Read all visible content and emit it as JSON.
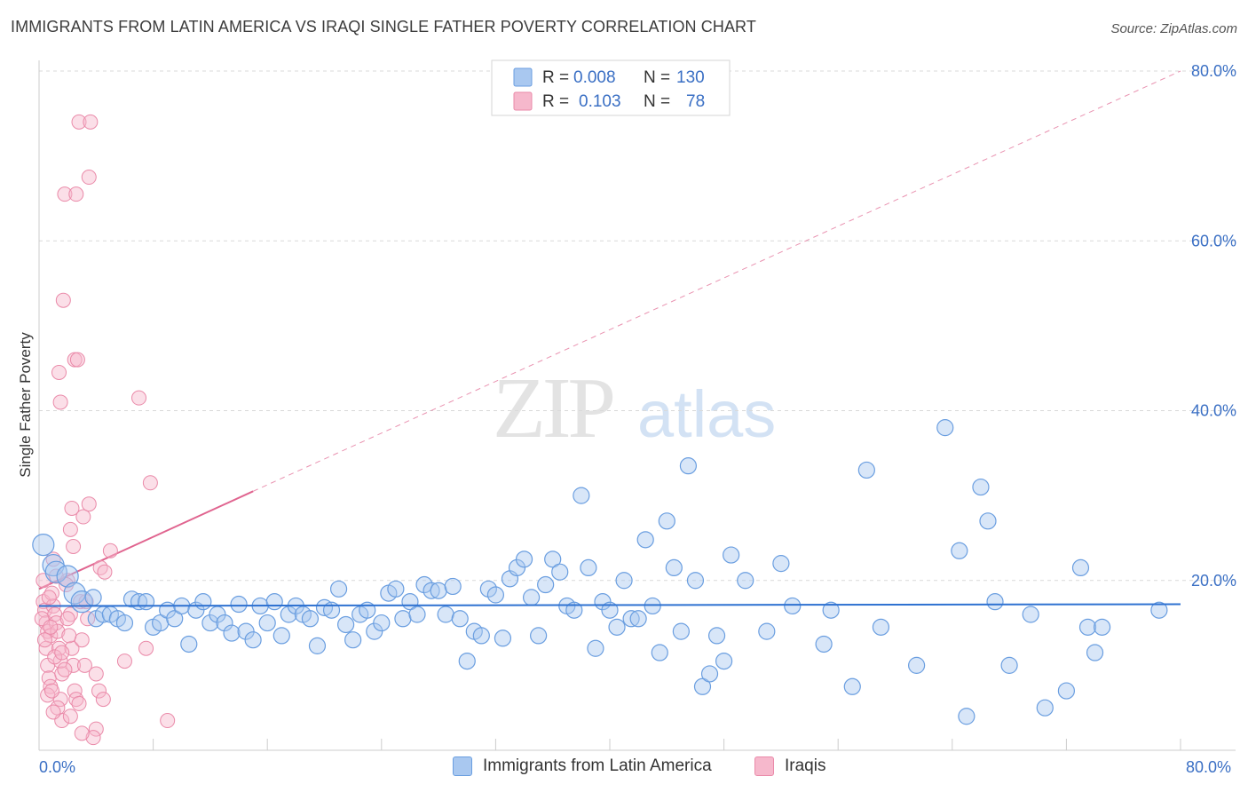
{
  "header": {
    "title": "IMMIGRANTS FROM LATIN AMERICA VS IRAQI SINGLE FATHER POVERTY CORRELATION CHART",
    "source": "Source: ZipAtlas.com"
  },
  "watermark": {
    "zip": "ZIP",
    "atlas": "atlas"
  },
  "colors": {
    "blue_fill": "#a9c8f0",
    "blue_stroke": "#6a9ee0",
    "blue_line": "#2f72d1",
    "pink_fill": "#f6b8cc",
    "pink_stroke": "#ea8aa9",
    "pink_line": "#e0648f",
    "axis_text": "#3a6fc4",
    "grid": "#d9d9d9"
  },
  "legend_stats": [
    {
      "r_label": "R =",
      "r_value": "0.008",
      "n_label": "N =",
      "n_value": "130"
    },
    {
      "r_label": "R =",
      "r_value": "0.103",
      "n_label": "N =",
      "n_value": "78"
    }
  ],
  "chart_data": {
    "type": "scatter",
    "title": "IMMIGRANTS FROM LATIN AMERICA VS IRAQI SINGLE FATHER POVERTY CORRELATION CHART",
    "xlabel": "",
    "ylabel": "Single Father Poverty",
    "xlim": [
      0,
      80
    ],
    "ylim": [
      0,
      80
    ],
    "x_ticks_labels": [
      "0.0%",
      "80.0%"
    ],
    "y_ticks_labels": [
      "20.0%",
      "40.0%",
      "60.0%",
      "80.0%"
    ],
    "y_ticks": [
      20,
      40,
      60,
      80
    ],
    "grid": true,
    "legend": "top-center and bottom",
    "series": [
      {
        "name": "Immigrants from Latin America",
        "r": 0.008,
        "n": 130,
        "trend": {
          "x": [
            0,
            80
          ],
          "y": [
            17.0,
            17.2
          ]
        },
        "points": [
          [
            0.3,
            24.2
          ],
          [
            1.0,
            21.8
          ],
          [
            1.2,
            21.0
          ],
          [
            2.0,
            20.5
          ],
          [
            2.5,
            18.5
          ],
          [
            3.0,
            17.5
          ],
          [
            3.8,
            18.0
          ],
          [
            4.0,
            15.5
          ],
          [
            4.5,
            16.0
          ],
          [
            5.0,
            16.0
          ],
          [
            5.5,
            15.5
          ],
          [
            6.0,
            15.0
          ],
          [
            6.5,
            17.8
          ],
          [
            7.0,
            17.5
          ],
          [
            7.5,
            17.5
          ],
          [
            8.0,
            14.5
          ],
          [
            8.5,
            15.0
          ],
          [
            9.0,
            16.5
          ],
          [
            9.5,
            15.5
          ],
          [
            10.0,
            17.0
          ],
          [
            10.5,
            12.5
          ],
          [
            11.0,
            16.5
          ],
          [
            11.5,
            17.5
          ],
          [
            12.0,
            15.0
          ],
          [
            12.5,
            16.0
          ],
          [
            13.0,
            15.0
          ],
          [
            13.5,
            13.8
          ],
          [
            14.0,
            17.2
          ],
          [
            14.5,
            14.0
          ],
          [
            15.0,
            13.0
          ],
          [
            15.5,
            17.0
          ],
          [
            16.0,
            15.0
          ],
          [
            16.5,
            17.5
          ],
          [
            17.0,
            13.5
          ],
          [
            17.5,
            16.0
          ],
          [
            18.0,
            17.0
          ],
          [
            18.5,
            16.0
          ],
          [
            19.0,
            15.5
          ],
          [
            19.5,
            12.3
          ],
          [
            20.0,
            16.8
          ],
          [
            20.5,
            16.5
          ],
          [
            21.0,
            19.0
          ],
          [
            21.5,
            14.8
          ],
          [
            22.0,
            13.0
          ],
          [
            22.5,
            16.0
          ],
          [
            23.0,
            16.5
          ],
          [
            23.5,
            14.0
          ],
          [
            24.0,
            15.0
          ],
          [
            24.5,
            18.5
          ],
          [
            25.0,
            19.0
          ],
          [
            25.5,
            15.5
          ],
          [
            26.0,
            17.5
          ],
          [
            26.5,
            16.0
          ],
          [
            27.0,
            19.5
          ],
          [
            27.5,
            18.8
          ],
          [
            28.0,
            18.8
          ],
          [
            28.5,
            16.0
          ],
          [
            29.0,
            19.3
          ],
          [
            29.5,
            15.5
          ],
          [
            30.0,
            10.5
          ],
          [
            30.5,
            14.0
          ],
          [
            31.0,
            13.5
          ],
          [
            31.5,
            19.0
          ],
          [
            32.0,
            18.3
          ],
          [
            32.5,
            13.2
          ],
          [
            33.0,
            20.2
          ],
          [
            33.5,
            21.5
          ],
          [
            34.0,
            22.5
          ],
          [
            34.5,
            18.0
          ],
          [
            35.0,
            13.5
          ],
          [
            35.5,
            19.5
          ],
          [
            36.0,
            22.5
          ],
          [
            36.5,
            21.0
          ],
          [
            37.0,
            17.0
          ],
          [
            37.5,
            16.5
          ],
          [
            38.0,
            30.0
          ],
          [
            38.5,
            21.5
          ],
          [
            39.0,
            12.0
          ],
          [
            39.5,
            17.5
          ],
          [
            40.0,
            16.5
          ],
          [
            40.5,
            14.5
          ],
          [
            41.0,
            20.0
          ],
          [
            41.5,
            15.5
          ],
          [
            42.0,
            15.5
          ],
          [
            42.5,
            24.8
          ],
          [
            43.0,
            17.0
          ],
          [
            43.5,
            11.5
          ],
          [
            44.0,
            27.0
          ],
          [
            44.5,
            21.5
          ],
          [
            45.0,
            14.0
          ],
          [
            45.5,
            33.5
          ],
          [
            46.0,
            20.0
          ],
          [
            46.5,
            7.5
          ],
          [
            47.0,
            9.0
          ],
          [
            47.5,
            13.5
          ],
          [
            48.0,
            10.5
          ],
          [
            48.5,
            23.0
          ],
          [
            49.5,
            20.0
          ],
          [
            51.0,
            14.0
          ],
          [
            52.0,
            22.0
          ],
          [
            52.8,
            17.0
          ],
          [
            55.0,
            12.5
          ],
          [
            55.5,
            16.5
          ],
          [
            57.0,
            7.5
          ],
          [
            58.0,
            33.0
          ],
          [
            59.0,
            14.5
          ],
          [
            61.5,
            10.0
          ],
          [
            63.5,
            38.0
          ],
          [
            64.5,
            23.5
          ],
          [
            65.0,
            4.0
          ],
          [
            66.0,
            31.0
          ],
          [
            66.5,
            27.0
          ],
          [
            67.0,
            17.5
          ],
          [
            68.0,
            10.0
          ],
          [
            69.5,
            16.0
          ],
          [
            70.5,
            5.0
          ],
          [
            72.0,
            7.0
          ],
          [
            73.0,
            21.5
          ],
          [
            73.5,
            14.5
          ],
          [
            74.0,
            11.5
          ],
          [
            74.5,
            14.5
          ],
          [
            78.5,
            16.5
          ]
        ]
      },
      {
        "name": "Iraqis",
        "r": 0.103,
        "n": 78,
        "trend_solid": {
          "x": [
            0,
            15
          ],
          "y": [
            19.0,
            30.5
          ]
        },
        "trend_dashed": {
          "x": [
            15,
            80
          ],
          "y": [
            30.5,
            80.0
          ]
        },
        "points": [
          [
            0.3,
            17.5
          ],
          [
            0.4,
            16.5
          ],
          [
            0.5,
            15.0
          ],
          [
            0.6,
            14.0
          ],
          [
            0.8,
            13.5
          ],
          [
            0.5,
            12.0
          ],
          [
            0.6,
            10.0
          ],
          [
            0.7,
            8.5
          ],
          [
            0.8,
            7.5
          ],
          [
            1.0,
            17.0
          ],
          [
            1.1,
            16.0
          ],
          [
            1.2,
            15.0
          ],
          [
            1.3,
            14.0
          ],
          [
            1.4,
            12.0
          ],
          [
            1.5,
            10.5
          ],
          [
            1.6,
            9.0
          ],
          [
            1.5,
            6.0
          ],
          [
            1.3,
            5.0
          ],
          [
            1.6,
            3.5
          ],
          [
            1.2,
            20.5
          ],
          [
            1.0,
            22.5
          ],
          [
            1.4,
            44.5
          ],
          [
            1.5,
            41.0
          ],
          [
            1.7,
            53.0
          ],
          [
            1.8,
            65.5
          ],
          [
            2.0,
            20.0
          ],
          [
            2.2,
            16.0
          ],
          [
            2.3,
            12.0
          ],
          [
            2.4,
            10.0
          ],
          [
            2.5,
            7.0
          ],
          [
            2.6,
            6.0
          ],
          [
            2.2,
            26.0
          ],
          [
            2.4,
            24.0
          ],
          [
            2.3,
            28.5
          ],
          [
            2.5,
            46.0
          ],
          [
            2.7,
            46.0
          ],
          [
            2.8,
            74.0
          ],
          [
            2.6,
            65.5
          ],
          [
            2.9,
            17.5
          ],
          [
            3.0,
            13.0
          ],
          [
            3.2,
            10.0
          ],
          [
            3.1,
            27.5
          ],
          [
            3.3,
            17.5
          ],
          [
            3.5,
            67.5
          ],
          [
            3.6,
            74.0
          ],
          [
            3.5,
            29.0
          ],
          [
            4.0,
            9.0
          ],
          [
            4.2,
            7.0
          ],
          [
            4.5,
            6.0
          ],
          [
            4.3,
            21.5
          ],
          [
            4.6,
            21.0
          ],
          [
            4.0,
            2.5
          ],
          [
            3.8,
            1.5
          ],
          [
            5.0,
            23.5
          ],
          [
            6.0,
            10.5
          ],
          [
            7.0,
            41.5
          ],
          [
            7.5,
            12.0
          ],
          [
            7.8,
            31.5
          ],
          [
            9.0,
            3.5
          ],
          [
            0.9,
            18.5
          ],
          [
            1.9,
            19.5
          ],
          [
            2.1,
            13.5
          ],
          [
            2.8,
            5.5
          ],
          [
            0.6,
            6.5
          ],
          [
            1.0,
            4.5
          ],
          [
            3.4,
            15.5
          ],
          [
            0.3,
            20.0
          ],
          [
            0.7,
            18.0
          ],
          [
            1.1,
            11.0
          ],
          [
            2.0,
            15.5
          ],
          [
            0.4,
            13.0
          ],
          [
            0.9,
            7.0
          ],
          [
            1.8,
            9.5
          ],
          [
            2.2,
            4.0
          ],
          [
            3.0,
            2.0
          ],
          [
            1.6,
            11.5
          ],
          [
            0.2,
            15.5
          ],
          [
            0.8,
            14.5
          ]
        ]
      }
    ],
    "bottom_legend": [
      "Immigrants from Latin America",
      "Iraqis"
    ]
  }
}
